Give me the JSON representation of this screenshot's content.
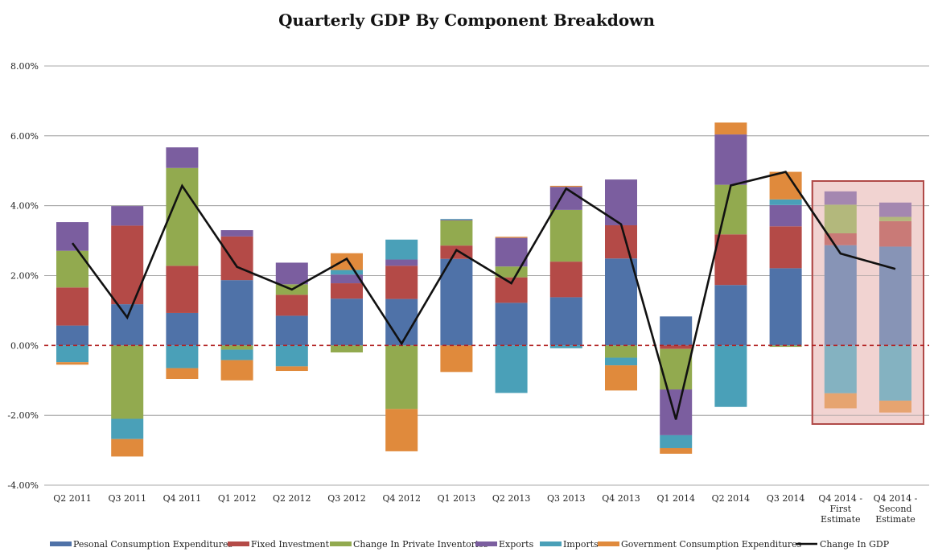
{
  "chart_data": {
    "type": "bar",
    "stacked": true,
    "title": "Quarterly GDP By Component Breakdown",
    "xlabel": "",
    "ylabel": "",
    "ylim": [
      -4,
      8
    ],
    "ytick_values": [
      -4,
      -2,
      0,
      2,
      4,
      6,
      8
    ],
    "ytick_labels": [
      "-4.00%",
      "-2.00%",
      "0.00%",
      "2.00%",
      "4.00%",
      "6.00%",
      "8.00%"
    ],
    "grid": true,
    "legend_position": "bottom",
    "categories": [
      [
        "Q2 2011"
      ],
      [
        "Q3 2011"
      ],
      [
        "Q4 2011"
      ],
      [
        "Q1 2012"
      ],
      [
        "Q2 2012"
      ],
      [
        "Q3 2012"
      ],
      [
        "Q4 2012"
      ],
      [
        "Q1 2013"
      ],
      [
        "Q2 2013"
      ],
      [
        "Q3 2013"
      ],
      [
        "Q4 2013"
      ],
      [
        "Q1 2014"
      ],
      [
        "Q2 2014"
      ],
      [
        "Q3 2014"
      ],
      [
        "Q4 2014 -",
        "First",
        "Estimate"
      ],
      [
        "Q4 2014 -",
        "Second",
        "Estimate"
      ]
    ],
    "series": [
      {
        "name": "Pesonal Consumption Expenditures",
        "color": "#4f72a8",
        "values": [
          0.57,
          1.18,
          0.93,
          1.87,
          0.85,
          1.34,
          1.33,
          2.48,
          1.22,
          1.38,
          2.49,
          0.83,
          1.73,
          2.21,
          2.87,
          2.83
        ]
      },
      {
        "name": "Fixed Investment",
        "color": "#b44a47",
        "values": [
          1.09,
          2.25,
          1.35,
          1.25,
          0.6,
          0.44,
          0.95,
          0.38,
          0.73,
          1.02,
          0.95,
          -0.1,
          1.45,
          1.2,
          0.34,
          0.73
        ]
      },
      {
        "name": "Change In Private Inventories",
        "color": "#92aa4f",
        "values": [
          1.05,
          -2.1,
          2.8,
          -0.12,
          0.3,
          -0.2,
          -1.82,
          0.72,
          0.31,
          1.48,
          -0.35,
          -1.16,
          1.42,
          -0.04,
          0.82,
          0.12
        ]
      },
      {
        "name": "Exports",
        "color": "#7b5e9f",
        "values": [
          0.82,
          0.56,
          0.59,
          0.18,
          0.62,
          0.25,
          0.18,
          0.02,
          0.82,
          0.66,
          1.31,
          -1.31,
          1.44,
          0.61,
          0.38,
          0.41
        ]
      },
      {
        "name": "Imports",
        "color": "#4aa0b8",
        "values": [
          -0.48,
          -0.58,
          -0.65,
          -0.3,
          -0.6,
          0.13,
          0.57,
          0.02,
          -1.36,
          -0.08,
          -0.22,
          -0.37,
          -1.76,
          0.16,
          -1.37,
          -1.58
        ]
      },
      {
        "name": "Government Consumption Expenditures",
        "color": "#e08a3c",
        "values": [
          -0.07,
          -0.5,
          -0.31,
          -0.58,
          -0.13,
          0.48,
          -1.21,
          -0.76,
          0.03,
          0.03,
          -0.72,
          -0.16,
          0.34,
          0.79,
          -0.43,
          -0.34
        ]
      }
    ],
    "line": {
      "name": "Change In GDP",
      "color": "#111111",
      "values": [
        2.93,
        0.8,
        4.57,
        2.25,
        1.6,
        2.48,
        0.05,
        2.73,
        1.78,
        4.49,
        3.47,
        -2.12,
        4.58,
        4.97,
        2.63,
        2.19
      ]
    },
    "zero_line_color": "#b22222",
    "highlight": {
      "from_category": 14,
      "to_category": 15,
      "fill": "#f2d3d2",
      "stroke": "#b04a48"
    }
  }
}
